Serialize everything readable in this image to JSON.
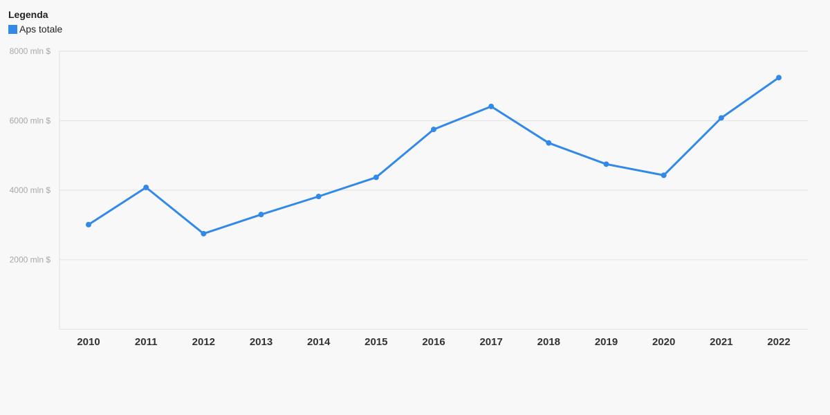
{
  "legend": {
    "title": "Legenda",
    "items": [
      {
        "label": "Aps totale",
        "color": "#3389e7"
      }
    ]
  },
  "chart_data": {
    "type": "line",
    "title": "",
    "xlabel": "",
    "ylabel": "",
    "x": [
      "2010",
      "2011",
      "2012",
      "2013",
      "2014",
      "2015",
      "2016",
      "2017",
      "2018",
      "2019",
      "2020",
      "2021",
      "2022"
    ],
    "series": [
      {
        "name": "Aps totale",
        "color": "#3389e7",
        "values": [
          3010,
          4080,
          2750,
          3300,
          3820,
          4370,
          5750,
          6410,
          5360,
          4750,
          4430,
          6080,
          7240
        ]
      }
    ],
    "ylim": [
      0,
      8000
    ],
    "yticks": [
      {
        "value": 2000,
        "label": "2000 mln $"
      },
      {
        "value": 4000,
        "label": "4000 mln $"
      },
      {
        "value": 6000,
        "label": "6000 mln $"
      },
      {
        "value": 8000,
        "label": "8000 mln $"
      }
    ],
    "grid": true,
    "legend_position": "top-left"
  }
}
